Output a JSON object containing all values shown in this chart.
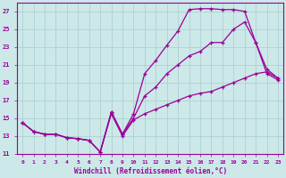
{
  "xlabel": "Windchill (Refroidissement éolien,°C)",
  "background_color": "#cce8e8",
  "grid_color": "#aacccc",
  "line_color": "#990099",
  "xlim": [
    -0.5,
    23.5
  ],
  "ylim": [
    11,
    28
  ],
  "xticks": [
    0,
    1,
    2,
    3,
    4,
    5,
    6,
    7,
    8,
    9,
    10,
    11,
    12,
    13,
    14,
    15,
    16,
    17,
    18,
    19,
    20,
    21,
    22,
    23
  ],
  "yticks": [
    11,
    13,
    15,
    17,
    19,
    21,
    23,
    25,
    27
  ],
  "curve1_x": [
    0,
    1,
    2,
    3,
    4,
    5,
    6,
    7,
    8,
    9,
    10,
    11,
    12,
    13,
    14,
    15,
    16,
    17,
    18,
    19,
    20,
    21,
    22,
    23
  ],
  "curve1_y": [
    14.5,
    13.5,
    13.2,
    13.2,
    12.8,
    12.7,
    12.5,
    11.2,
    15.7,
    13.2,
    15.5,
    20.0,
    21.5,
    23.2,
    24.8,
    27.2,
    27.3,
    27.3,
    27.2,
    27.2,
    27.0,
    23.5,
    20.0,
    19.3
  ],
  "curve2_x": [
    0,
    1,
    2,
    3,
    4,
    5,
    6,
    7,
    8,
    9,
    10,
    11,
    12,
    13,
    14,
    15,
    16,
    17,
    18,
    19,
    20,
    21,
    22,
    23
  ],
  "curve2_y": [
    14.5,
    13.5,
    13.2,
    13.2,
    12.8,
    12.7,
    12.5,
    11.2,
    15.7,
    13.2,
    15.0,
    17.5,
    18.5,
    20.0,
    21.0,
    22.0,
    22.5,
    23.5,
    23.5,
    25.0,
    25.8,
    23.5,
    20.5,
    19.5
  ],
  "curve3_x": [
    0,
    1,
    2,
    3,
    4,
    5,
    6,
    7,
    8,
    9,
    10,
    11,
    12,
    13,
    14,
    15,
    16,
    17,
    18,
    19,
    20,
    21,
    22,
    23
  ],
  "curve3_y": [
    14.5,
    13.5,
    13.2,
    13.2,
    12.8,
    12.7,
    12.5,
    11.2,
    15.5,
    13.0,
    14.8,
    15.5,
    16.0,
    16.5,
    17.0,
    17.5,
    17.8,
    18.0,
    18.5,
    19.0,
    19.5,
    20.0,
    20.2,
    19.5
  ]
}
